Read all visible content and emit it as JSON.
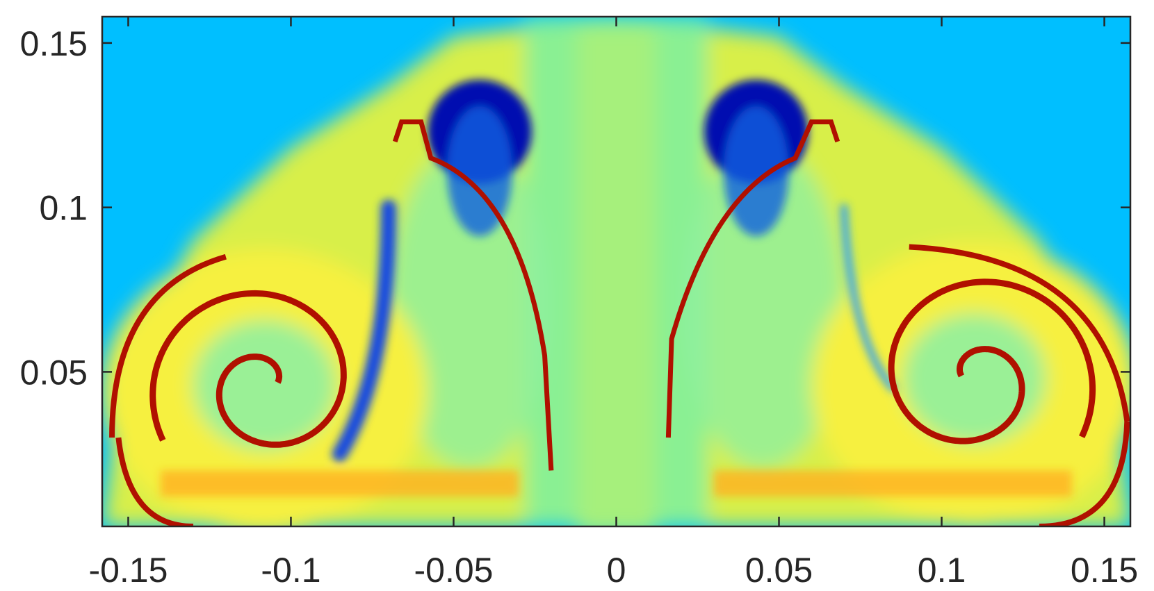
{
  "chart_data": {
    "type": "heatmap",
    "title": "",
    "xlabel": "",
    "ylabel": "",
    "xlim": [
      -0.158,
      0.158
    ],
    "ylim": [
      0.003,
      0.158
    ],
    "colormap": "jet",
    "grid": false,
    "x_ticks": [
      -0.15,
      -0.1,
      -0.05,
      0,
      0.05,
      0.1,
      0.15
    ],
    "x_tick_labels": [
      "-0.15",
      "-0.1",
      "-0.05",
      "0",
      "0.05",
      "0.1",
      "0.15"
    ],
    "y_ticks": [
      0.05,
      0.1,
      0.15
    ],
    "y_tick_labels": [
      "0.05",
      "0.1",
      "0.15"
    ],
    "features": {
      "background_color": "#00bfff",
      "spiral_core_left": [
        -0.108,
        0.046
      ],
      "spiral_core_right": [
        0.11,
        0.048
      ],
      "blue_blob_left": [
        -0.042,
        0.123
      ],
      "blue_blob_right": [
        0.043,
        0.123
      ],
      "red_color": "#b01000",
      "yellow_color": "#f6f040"
    }
  }
}
